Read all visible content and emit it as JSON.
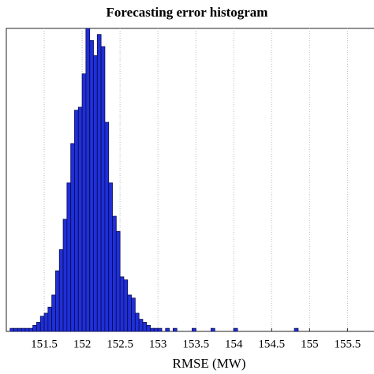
{
  "chart_data": {
    "type": "histogram",
    "title": "Forecasting error histogram",
    "xlabel": "RMSE (MW)",
    "bins": [
      151.05,
      151.1,
      151.15,
      151.2,
      151.25,
      151.3,
      151.35,
      151.4,
      151.45,
      151.5,
      151.55,
      151.6,
      151.65,
      151.7,
      151.75,
      151.8,
      151.85,
      151.9,
      151.95,
      152,
      152.05,
      152.1,
      152.15,
      152.2,
      152.25,
      152.3,
      152.35,
      152.4,
      152.45,
      152.5,
      152.55,
      152.6,
      152.65,
      152.7,
      152.75,
      152.8,
      152.85,
      152.9,
      152.95,
      153,
      153.05,
      153.1,
      153.15,
      153.2,
      153.25,
      153.3,
      153.35,
      153.4,
      153.45,
      153.5,
      153.55,
      153.6,
      153.65,
      153.7,
      153.75,
      153.8,
      153.85,
      153.9,
      153.95,
      154,
      154.05,
      154.1,
      154.15,
      154.2,
      154.25,
      154.3,
      154.35,
      154.4,
      154.45,
      154.5,
      154.55,
      154.6,
      154.65,
      154.7,
      154.75,
      154.8,
      154.85,
      154.9,
      154.95,
      155,
      155.05
    ],
    "values": [
      1,
      1,
      1,
      1,
      1,
      1,
      2,
      3,
      5,
      6,
      8,
      12,
      20,
      27,
      37,
      49,
      62,
      73,
      74,
      85,
      100,
      96,
      91,
      98,
      94,
      69,
      49,
      38,
      33,
      18,
      17,
      12,
      11,
      6,
      4,
      3,
      2,
      1,
      1,
      1,
      0,
      1,
      0,
      1,
      0,
      0,
      0,
      0,
      1,
      0,
      0,
      0,
      0,
      1,
      0,
      0,
      0,
      0,
      0,
      1,
      0,
      0,
      0,
      0,
      0,
      0,
      0,
      0,
      0,
      0,
      0,
      0,
      0,
      0,
      0,
      1,
      0,
      0,
      0,
      0
    ],
    "color": "#1f2fd8",
    "xlim": [
      151,
      155.85
    ],
    "ylim": [
      0,
      100
    ],
    "xticks": [
      151.5,
      152,
      152.5,
      153,
      153.5,
      154,
      154.5,
      155,
      155.5
    ],
    "grid": true
  }
}
